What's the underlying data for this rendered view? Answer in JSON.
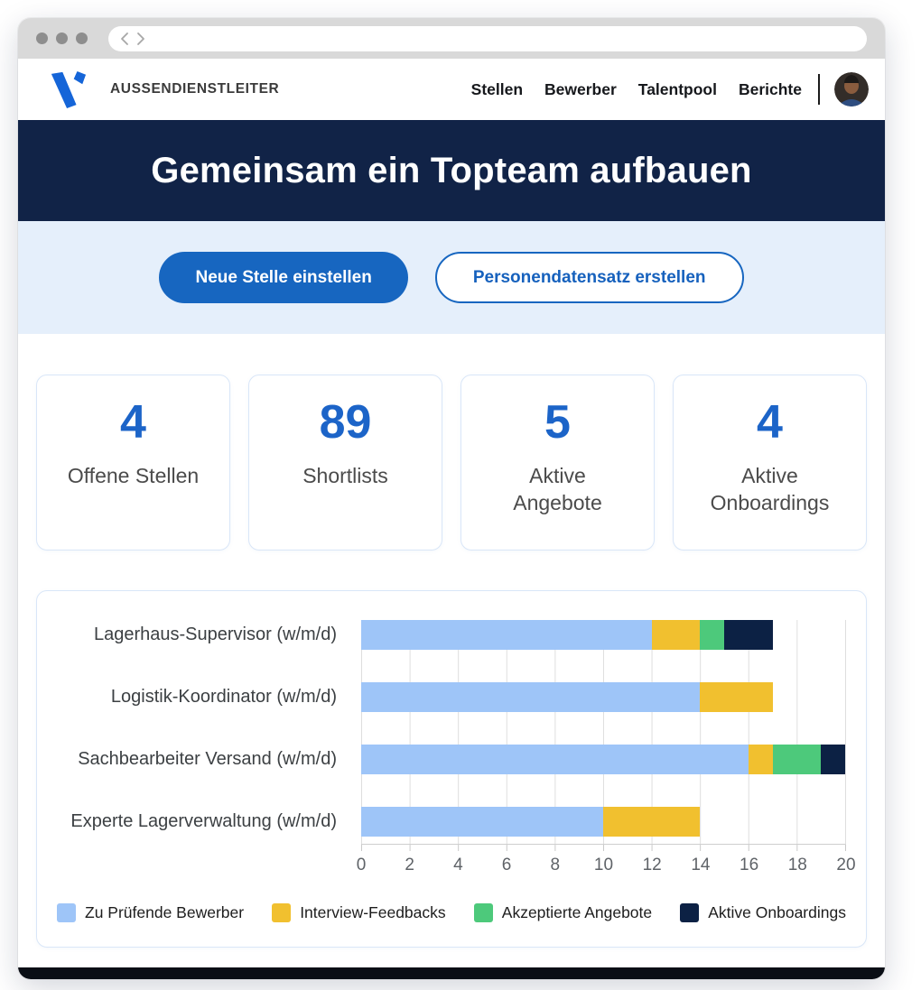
{
  "browser": {
    "back_icon": "chevron-left",
    "forward_icon": "chevron-right"
  },
  "header": {
    "brand": "AUSSENDIENSTLEITER",
    "nav": [
      {
        "label": "Stellen"
      },
      {
        "label": "Bewerber"
      },
      {
        "label": "Talentpool"
      },
      {
        "label": "Berichte"
      }
    ]
  },
  "hero": {
    "title": "Gemeinsam ein Topteam aufbauen"
  },
  "actions": {
    "primary_label": "Neue Stelle einstellen",
    "secondary_label": "Personendatensatz erstellen"
  },
  "stats": [
    {
      "value": "4",
      "label": "Offene Stellen"
    },
    {
      "value": "89",
      "label": "Shortlists"
    },
    {
      "value": "5",
      "label": "Aktive\nAngebote"
    },
    {
      "value": "4",
      "label": "Aktive\nOnboardings"
    }
  ],
  "chart_data": {
    "type": "bar",
    "orientation": "horizontal",
    "stacked": true,
    "categories": [
      "Lagerhaus-Supervisor (w/m/d)",
      "Logistik-Koordinator (w/m/d)",
      "Sachbearbeiter Versand (w/m/d)",
      "Experte Lagerverwaltung (w/m/d)"
    ],
    "series": [
      {
        "name": "Zu Prüfende Bewerber",
        "color": "#9EC5F8",
        "values": [
          12,
          14,
          16,
          10
        ]
      },
      {
        "name": "Interview-Feedbacks",
        "color": "#F1C02F",
        "values": [
          2,
          3,
          1,
          4
        ]
      },
      {
        "name": "Akzeptierte Angebote",
        "color": "#4DC97B",
        "values": [
          1,
          0,
          2,
          0
        ]
      },
      {
        "name": "Aktive Onboardings",
        "color": "#0C2144",
        "values": [
          2,
          0,
          1,
          0
        ]
      }
    ],
    "xlim": [
      0,
      20
    ],
    "xticks": [
      0,
      2,
      4,
      6,
      8,
      10,
      12,
      14,
      16,
      18,
      20
    ],
    "grid": true,
    "legend_position": "bottom"
  },
  "theme": {
    "accent": "#1766C0",
    "accent_text": "#1661BD",
    "hero_bg": "#112347",
    "subhero_bg": "#E5EFFB",
    "stat_number": "#1C64C8",
    "card_border": "#D9E6F8",
    "footer_bar": "#0A0E15",
    "logo_blue": "#1565D8"
  }
}
